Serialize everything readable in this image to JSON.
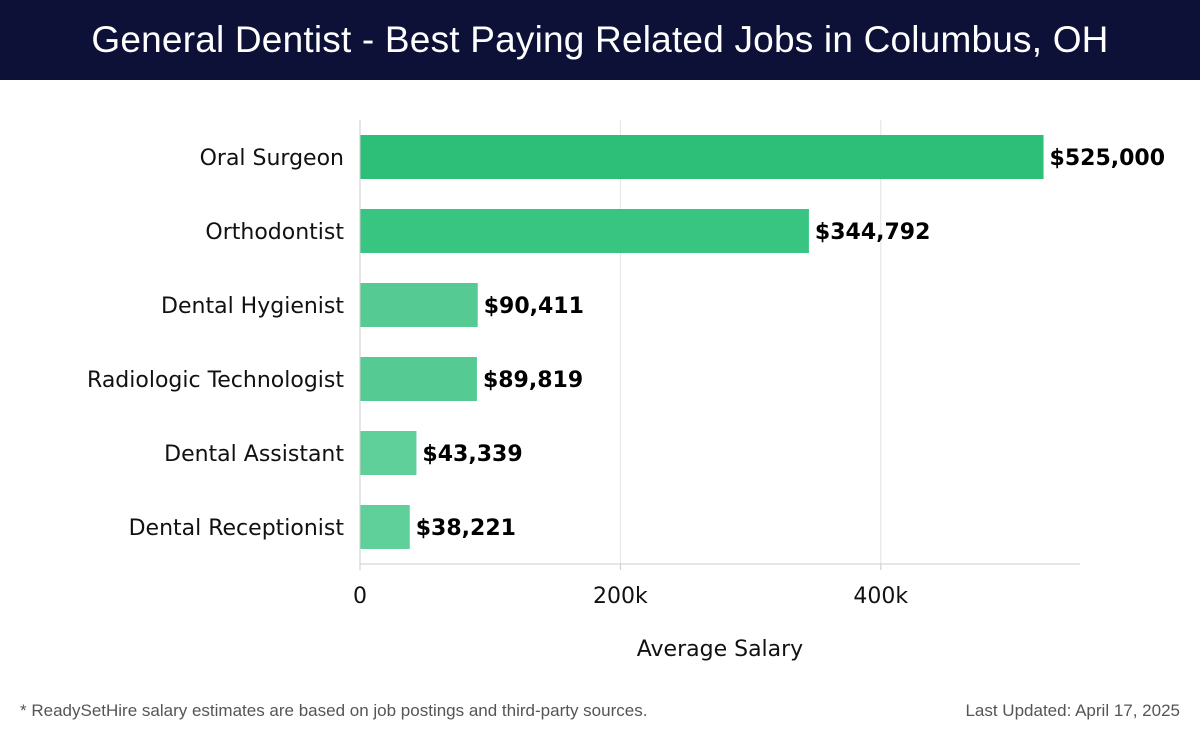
{
  "header": {
    "title": "General Dentist - Best Paying Related Jobs in Columbus, OH"
  },
  "chart_data": {
    "type": "bar",
    "orientation": "horizontal",
    "title": "General Dentist - Best Paying Related Jobs in Columbus, OH",
    "xlabel": "Average Salary",
    "ylabel": "",
    "categories": [
      "Oral Surgeon",
      "Orthodontist",
      "Dental Hygienist",
      "Radiologic Technologist",
      "Dental Assistant",
      "Dental Receptionist"
    ],
    "values": [
      525000,
      344792,
      90411,
      89819,
      43339,
      38221
    ],
    "value_labels": [
      "$525,000",
      "$344,792",
      "$90,411",
      "$89,819",
      "$43,339",
      "$38,221"
    ],
    "xlim": [
      0,
      553000
    ],
    "x_ticks": [
      0,
      200000,
      400000
    ],
    "x_tick_labels": [
      "0",
      "200k",
      "400k"
    ],
    "grid": "vertical",
    "legend": "none",
    "colors": [
      "#2dbf78",
      "#37c581",
      "#55cb93",
      "#55cb93",
      "#5fd09a",
      "#5fd09a"
    ]
  },
  "footer": {
    "note": "* ReadySetHire salary estimates are based on job postings and third-party sources.",
    "updated": "Last Updated: April 17, 2025"
  },
  "theme": {
    "header_bg": "#0d1138",
    "grid_color": "#e3e3e3",
    "axis_color": "#cccccc"
  }
}
